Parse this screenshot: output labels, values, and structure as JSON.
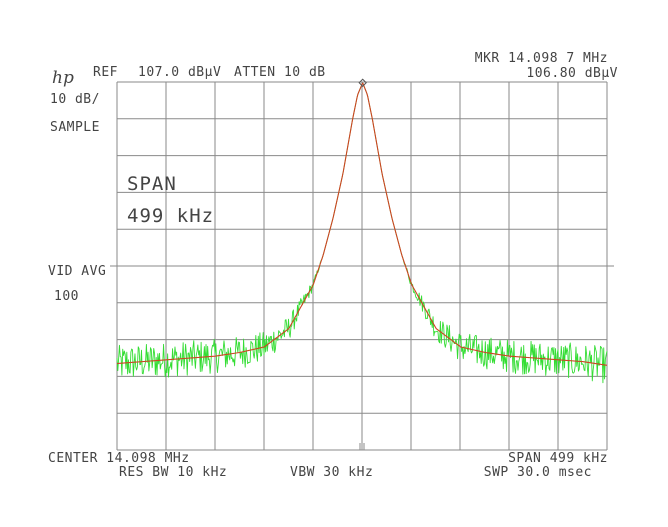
{
  "instrument": {
    "logo": "hp",
    "ref_label": "REF",
    "ref_level": "107.0 dBµV",
    "atten": "ATTEN 10 dB",
    "scale": "10 dB/",
    "detector": "SAMPLE",
    "marker_label": "MKR 14.098 7 MHz",
    "marker_level": "106.80 dBµV",
    "span_title": "SPAN",
    "span_value": "499 kHz",
    "vid_avg_label": "VID AVG",
    "vid_avg_count": "100",
    "center": "CENTER 14.098 MHz",
    "span_footer": "SPAN 499 kHz",
    "res_bw": "RES BW 10 kHz",
    "vbw": "VBW 30 kHz",
    "sweep": "SWP 30.0 msec"
  },
  "colors": {
    "graticule": "#8a8a8a",
    "text": "#444444",
    "trace_live": "#33dd33",
    "trace_average": "#cc4422"
  },
  "chart_data": {
    "type": "line",
    "x_unit": "MHz",
    "y_unit": "dBµV",
    "xlim": [
      13.8485,
      14.3475
    ],
    "ylim": [
      7.0,
      107.0
    ],
    "grid": true,
    "grid_divisions": {
      "x": 10,
      "y": 10
    },
    "marker": {
      "x": 14.0987,
      "y": 106.8
    },
    "series": [
      {
        "color": "#33dd33",
        "noisy": true,
        "x": [
          13.8485,
          13.8735,
          13.8985,
          13.9235,
          13.9485,
          13.9735,
          13.9985,
          14.0235,
          14.0485,
          14.0585,
          14.0685,
          14.0785,
          14.0885,
          14.0935,
          14.0987,
          14.1035,
          14.1085,
          14.1185,
          14.1285,
          14.1385,
          14.1485,
          14.1735,
          14.1985,
          14.2235,
          14.2485,
          14.2735,
          14.2985,
          14.3235,
          14.3475
        ],
        "y": [
          30.5,
          31.0,
          31.5,
          32.0,
          32.5,
          33.5,
          35.0,
          40.0,
          52.0,
          60.0,
          70.0,
          82.0,
          97.0,
          103.5,
          106.8,
          103.5,
          97.0,
          82.0,
          70.0,
          60.0,
          52.0,
          40.0,
          35.0,
          33.5,
          32.5,
          32.0,
          31.5,
          31.0,
          30.0
        ]
      },
      {
        "color": "#cc4422",
        "noisy": false,
        "x": [
          13.8485,
          13.8735,
          13.8985,
          13.9235,
          13.9485,
          13.9735,
          13.9985,
          14.0235,
          14.0485,
          14.0585,
          14.0685,
          14.0785,
          14.0885,
          14.0935,
          14.0987,
          14.1035,
          14.1085,
          14.1185,
          14.1285,
          14.1385,
          14.1485,
          14.1735,
          14.1985,
          14.2235,
          14.2485,
          14.2735,
          14.2985,
          14.3235,
          14.3475
        ],
        "y": [
          30.5,
          31.0,
          31.5,
          32.0,
          32.5,
          33.5,
          35.0,
          40.0,
          52.0,
          60.0,
          70.0,
          82.0,
          97.0,
          103.5,
          106.8,
          103.5,
          97.0,
          82.0,
          70.0,
          60.0,
          52.0,
          40.0,
          35.0,
          33.5,
          32.5,
          32.0,
          31.5,
          31.0,
          30.0
        ]
      }
    ]
  }
}
